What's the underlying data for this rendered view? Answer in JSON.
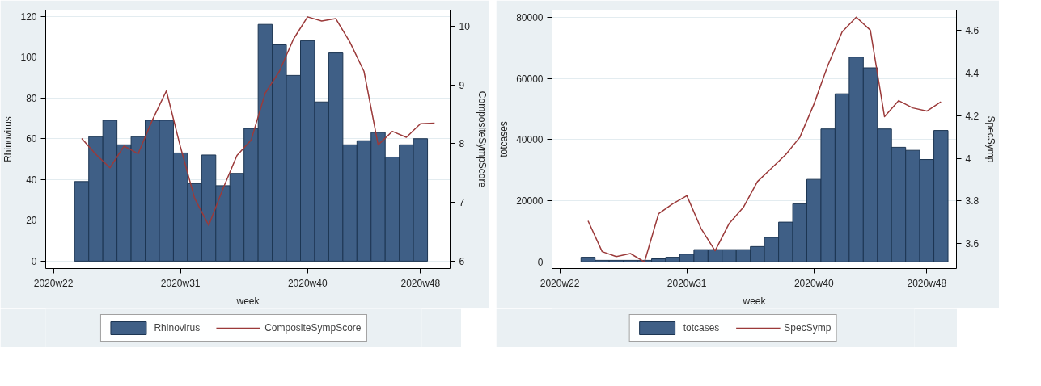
{
  "chart_data": [
    {
      "type": "bar",
      "xlabel": "week",
      "ylabel": "Rhinovirus",
      "y2label": "CompositeSympScore",
      "legend": "bottom",
      "grid": "y",
      "categories": [
        "2020w22",
        null,
        null,
        null,
        null,
        null,
        null,
        null,
        null,
        "2020w31",
        null,
        null,
        null,
        null,
        null,
        null,
        null,
        null,
        "2020w40",
        null,
        null,
        null,
        null,
        null,
        null,
        null,
        "2020w48",
        null
      ],
      "ylim": [
        -3.6,
        123
      ],
      "yticks": [
        0,
        20,
        40,
        60,
        80,
        100,
        120
      ],
      "y2lim": [
        5.875,
        10.275
      ],
      "y2ticks": [
        6,
        7,
        8,
        9,
        10
      ],
      "series": [
        {
          "name": "Rhinovirus",
          "color": "#3f5f86",
          "values": [
            null,
            null,
            39,
            61,
            69,
            57,
            61,
            69,
            69,
            53,
            38,
            52,
            37,
            43,
            65,
            116,
            106,
            91,
            108,
            78,
            102,
            57,
            59,
            63,
            51,
            57,
            60,
            null
          ]
        },
        {
          "name": "CompositeSympScore",
          "type": "line",
          "axis": "y2",
          "color": "#9b3a3a",
          "values": [
            null,
            null,
            8.09,
            7.82,
            7.59,
            7.96,
            7.83,
            8.4,
            8.9,
            7.94,
            7.07,
            6.61,
            7.23,
            7.8,
            8.06,
            8.86,
            9.23,
            9.78,
            10.16,
            10.09,
            10.13,
            9.73,
            9.23,
            7.98,
            8.21,
            8.11,
            8.34,
            8.35
          ]
        }
      ]
    },
    {
      "type": "bar",
      "xlabel": "week",
      "ylabel": "totcases",
      "y2label": "SpecSymp",
      "legend": "bottom",
      "grid": "y",
      "categories": [
        "2020w22",
        null,
        null,
        null,
        null,
        null,
        null,
        null,
        null,
        "2020w31",
        null,
        null,
        null,
        null,
        null,
        null,
        null,
        null,
        "2020w40",
        null,
        null,
        null,
        null,
        null,
        null,
        null,
        "2020w48",
        null
      ],
      "ylim": [
        -2170,
        82400
      ],
      "yticks": [
        0,
        20000,
        40000,
        60000,
        80000
      ],
      "y2lim": [
        3.484,
        4.694
      ],
      "y2ticks": [
        3.6,
        3.8,
        4,
        4.2,
        4.4,
        4.6
      ],
      "series": [
        {
          "name": "totcases",
          "color": "#3f5f86",
          "values": [
            null,
            null,
            1500,
            500,
            500,
            500,
            500,
            1000,
            1500,
            2500,
            4000,
            4000,
            4000,
            4000,
            5000,
            8000,
            13000,
            19000,
            27000,
            43500,
            55000,
            67000,
            63500,
            43500,
            37500,
            36500,
            33500,
            43000
          ]
        },
        {
          "name": "SpecSymp",
          "type": "line",
          "axis": "y2",
          "color": "#9b3a3a",
          "values": [
            null,
            null,
            3.707,
            3.563,
            3.54,
            3.554,
            3.515,
            3.741,
            3.787,
            3.825,
            3.672,
            3.567,
            3.695,
            3.77,
            3.891,
            3.954,
            4.017,
            4.098,
            4.253,
            4.437,
            4.592,
            4.661,
            4.6,
            4.195,
            4.27,
            4.236,
            4.221,
            4.264
          ]
        }
      ]
    }
  ]
}
